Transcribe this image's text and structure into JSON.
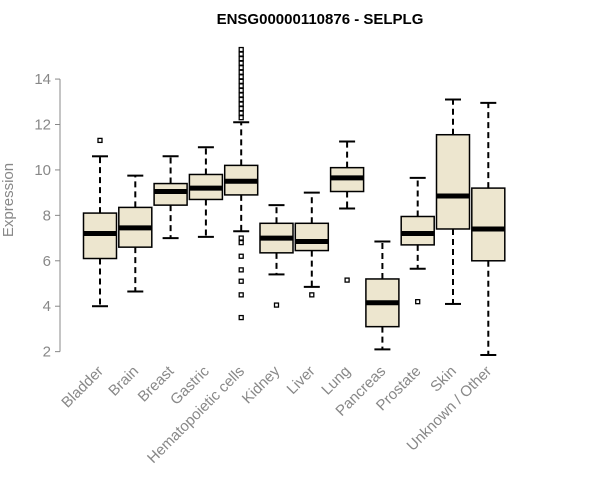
{
  "chart_data": {
    "type": "boxplot",
    "title": "ENSG00000110876 - SELPLG",
    "xlabel": "",
    "ylabel": "Expression",
    "ylim": [
      1.5,
      15.5
    ],
    "yticks": [
      2,
      4,
      6,
      8,
      10,
      12,
      14
    ],
    "box_fill": "#ede6cf",
    "categories": [
      "Bladder",
      "Brain",
      "Breast",
      "Gastric",
      "Hematopoietic cells",
      "Kidney",
      "Liver",
      "Lung",
      "Pancreas",
      "Prostate",
      "Skin",
      "Unknown / Other"
    ],
    "boxes": [
      {
        "low": 4.0,
        "q1": 6.1,
        "median": 7.2,
        "q3": 8.1,
        "high": 10.6,
        "outliers": [
          11.3
        ]
      },
      {
        "low": 4.65,
        "q1": 6.6,
        "median": 7.45,
        "q3": 8.35,
        "high": 9.75,
        "outliers": []
      },
      {
        "low": 7.0,
        "q1": 8.45,
        "median": 9.05,
        "q3": 9.4,
        "high": 10.6,
        "outliers": []
      },
      {
        "low": 7.05,
        "q1": 8.7,
        "median": 9.2,
        "q3": 9.8,
        "high": 11.0,
        "outliers": []
      },
      {
        "low": 7.3,
        "q1": 8.9,
        "median": 9.5,
        "q3": 10.2,
        "high": 12.1,
        "outliers": [
          3.5,
          4.5,
          5.1,
          5.6,
          6.2,
          6.8,
          7.0,
          12.3,
          12.5,
          12.7,
          12.9,
          13.1,
          13.3,
          13.5,
          13.7,
          13.9,
          14.1,
          14.3,
          14.5,
          14.7,
          14.9,
          15.1,
          15.3
        ]
      },
      {
        "low": 5.4,
        "q1": 6.35,
        "median": 7.0,
        "q3": 7.65,
        "high": 8.45,
        "outliers": [
          4.05
        ]
      },
      {
        "low": 4.85,
        "q1": 6.45,
        "median": 6.85,
        "q3": 7.65,
        "high": 9.0,
        "outliers": [
          4.5
        ]
      },
      {
        "low": 8.3,
        "q1": 9.05,
        "median": 9.65,
        "q3": 10.1,
        "high": 11.25,
        "outliers": [
          5.15
        ]
      },
      {
        "low": 2.1,
        "q1": 3.1,
        "median": 4.15,
        "q3": 5.2,
        "high": 6.85,
        "outliers": []
      },
      {
        "low": 5.65,
        "q1": 6.7,
        "median": 7.2,
        "q3": 7.95,
        "high": 9.65,
        "outliers": [
          4.2
        ]
      },
      {
        "low": 4.1,
        "q1": 7.4,
        "median": 8.85,
        "q3": 11.55,
        "high": 13.1,
        "outliers": []
      },
      {
        "low": 1.85,
        "q1": 6.0,
        "median": 7.4,
        "q3": 9.2,
        "high": 12.95,
        "outliers": []
      }
    ]
  }
}
